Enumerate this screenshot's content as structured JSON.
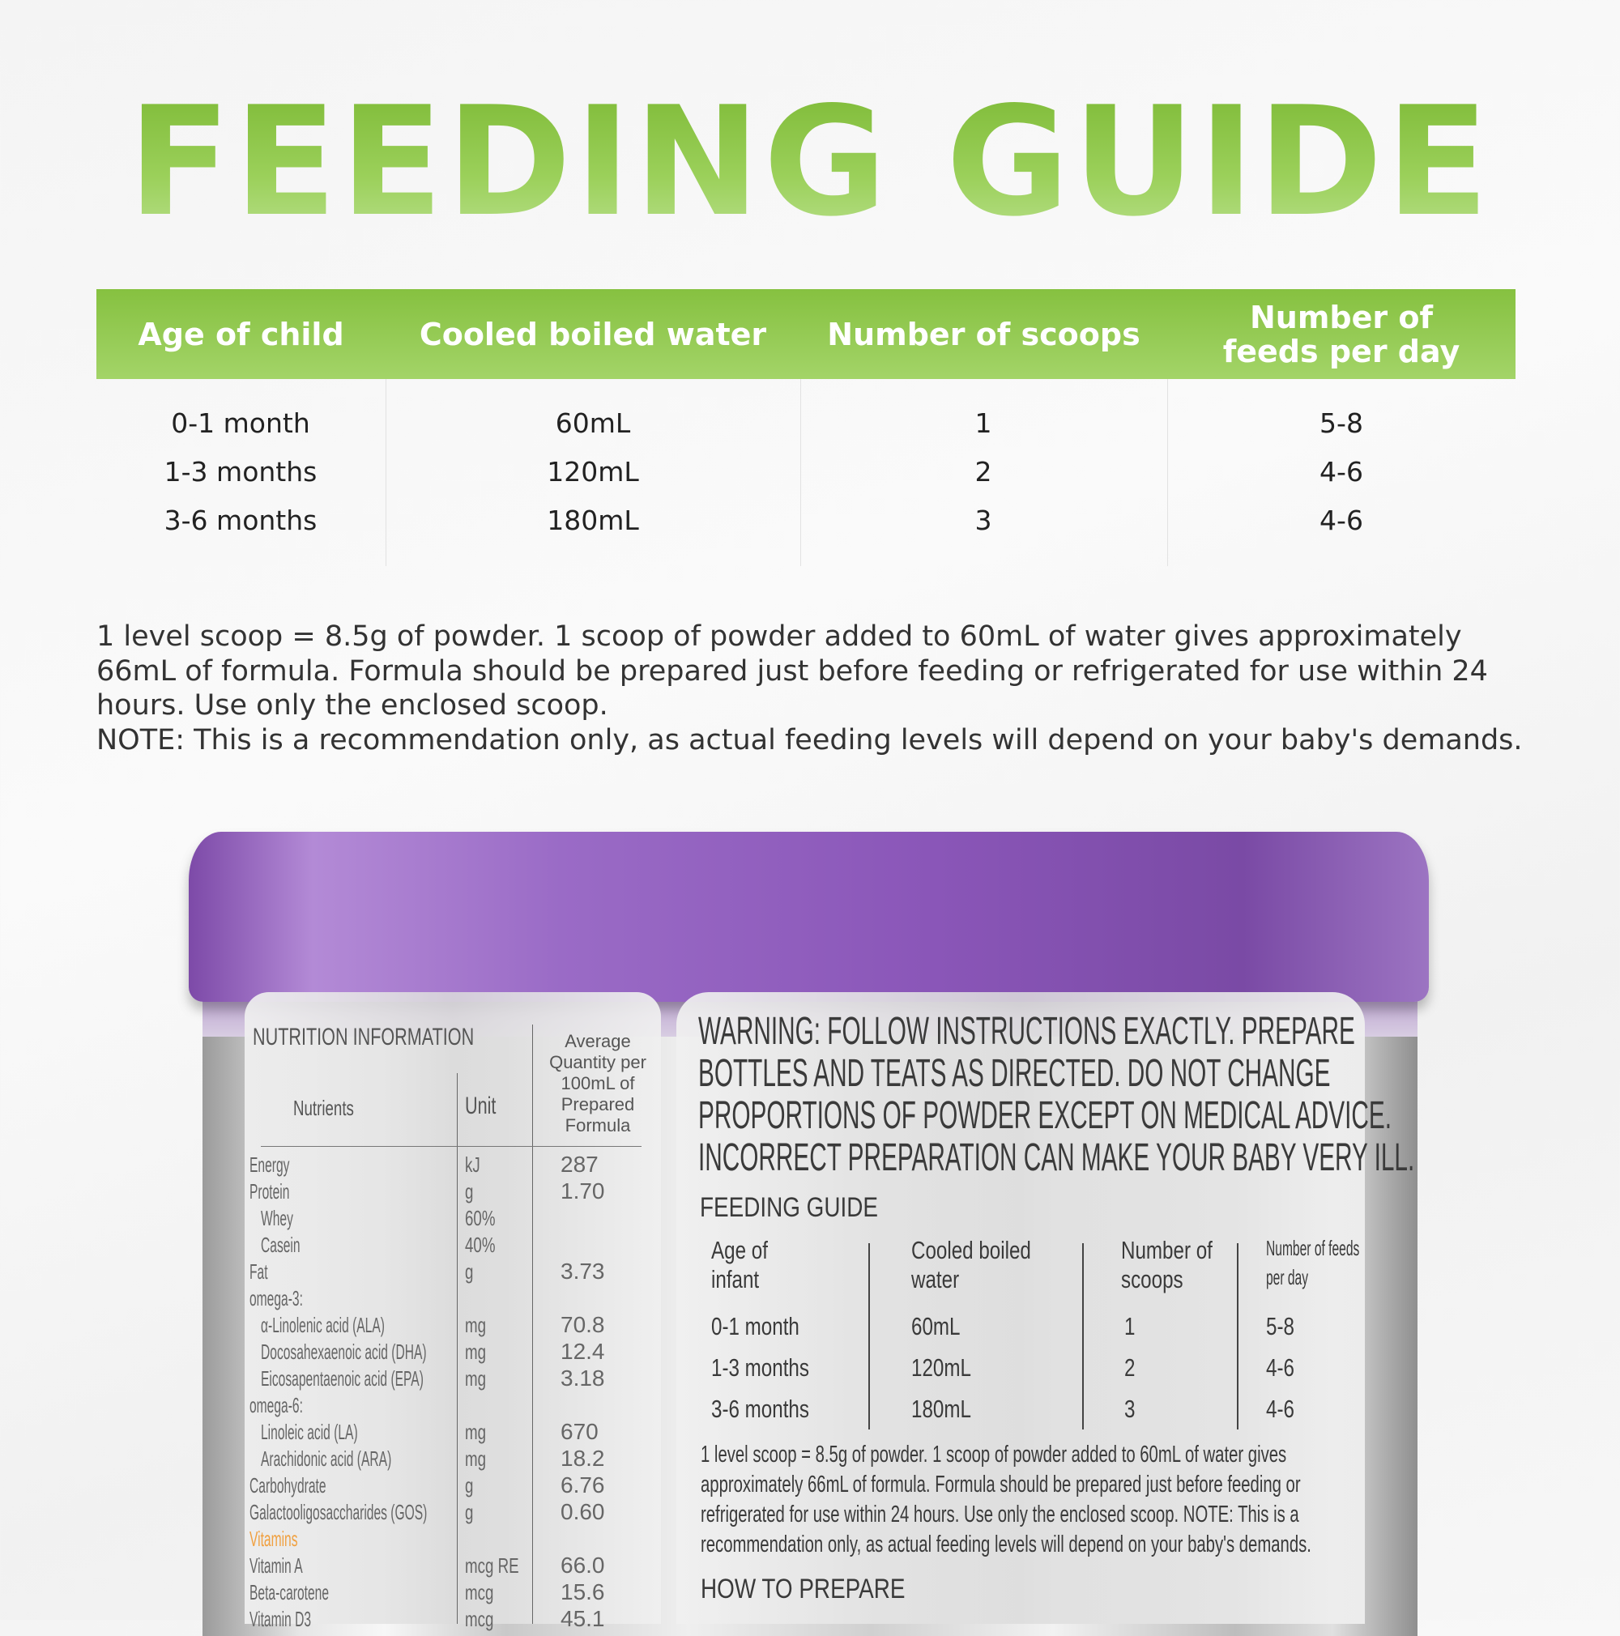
{
  "title": "FEEDING GUIDE",
  "table": {
    "headers": [
      "Age of child",
      "Cooled boiled water",
      "Number of scoops",
      "Number of feeds per day"
    ],
    "rows": [
      [
        "0-1 month",
        "60mL",
        "1",
        "5-8"
      ],
      [
        "1-3 months",
        "120mL",
        "2",
        "4-6"
      ],
      [
        "3-6 months",
        "180mL",
        "3",
        "4-6"
      ]
    ]
  },
  "paragraph": "1 level scoop = 8.5g of powder. 1 scoop of powder added to 60mL of water gives approximately 66mL of formula. Formula should be prepared just before feeding or refrigerated for use within 24 hours. Use only the enclosed scoop.",
  "note": "NOTE: This is a recommendation only, as actual feeding levels will depend on your baby's demands.",
  "can": {
    "nutrition": {
      "title": "NUTRITION INFORMATION",
      "headers": [
        "Nutrients",
        "Unit",
        "Average Quantity per 100mL of Prepared Formula"
      ],
      "rows": [
        [
          "Energy",
          "kJ",
          "287"
        ],
        [
          "Protein",
          "g",
          "1.70"
        ],
        [
          "Whey",
          "60%",
          ""
        ],
        [
          "Casein",
          "40%",
          ""
        ],
        [
          "Fat",
          "g",
          "3.73"
        ],
        [
          "omega-3:",
          "",
          ""
        ],
        [
          "α-Linolenic acid (ALA)",
          "mg",
          "70.8"
        ],
        [
          "Docosahexaenoic acid (DHA)",
          "mg",
          "12.4"
        ],
        [
          "Eicosapentaenoic acid (EPA)",
          "mg",
          "3.18"
        ],
        [
          "omega-6:",
          "",
          ""
        ],
        [
          "Linoleic acid (LA)",
          "mg",
          "670"
        ],
        [
          "Arachidonic acid (ARA)",
          "mg",
          "18.2"
        ],
        [
          "Carbohydrate",
          "g",
          "6.76"
        ],
        [
          "Galactooligosaccharides (GOS)",
          "g",
          "0.60"
        ],
        [
          "Vitamins",
          "",
          ""
        ],
        [
          "Vitamin A",
          "mcg RE",
          "66.0"
        ],
        [
          "Beta-carotene",
          "mcg",
          "15.6"
        ],
        [
          "Vitamin D3",
          "mcg",
          "45.1"
        ]
      ]
    },
    "warning": [
      "WARNING: FOLLOW INSTRUCTIONS EXACTLY. PREPARE",
      "BOTTLES AND TEATS AS DIRECTED. DO NOT CHANGE",
      "PROPORTIONS OF POWDER EXCEPT ON MEDICAL ADVICE.",
      "INCORRECT PREPARATION CAN MAKE YOUR BABY VERY ILL."
    ],
    "feeding_title": "FEEDING GUIDE",
    "feeding_headers": [
      [
        "Age of",
        "infant"
      ],
      [
        "Cooled boiled",
        "water"
      ],
      [
        "Number of",
        "scoops"
      ],
      [
        "Number of feeds",
        "per day"
      ]
    ],
    "feeding_rows": [
      [
        "0-1 month",
        "60mL",
        "1",
        "5-8"
      ],
      [
        "1-3 months",
        "120mL",
        "2",
        "4-6"
      ],
      [
        "3-6 months",
        "180mL",
        "3",
        "4-6"
      ]
    ],
    "para_lines": [
      "1 level scoop = 8.5g of powder. 1 scoop of powder added to 60mL of water gives",
      "approximately 66mL of formula. Formula should be prepared just before feeding or",
      "refrigerated for use within 24 hours. Use only the enclosed scoop. NOTE: This is a",
      "recommendation only, as actual feeding levels will depend on your baby's demands."
    ],
    "how_to": "HOW TO PREPARE"
  },
  "colors": {
    "green": "#8cc63f",
    "purple": "#8a56b8"
  }
}
